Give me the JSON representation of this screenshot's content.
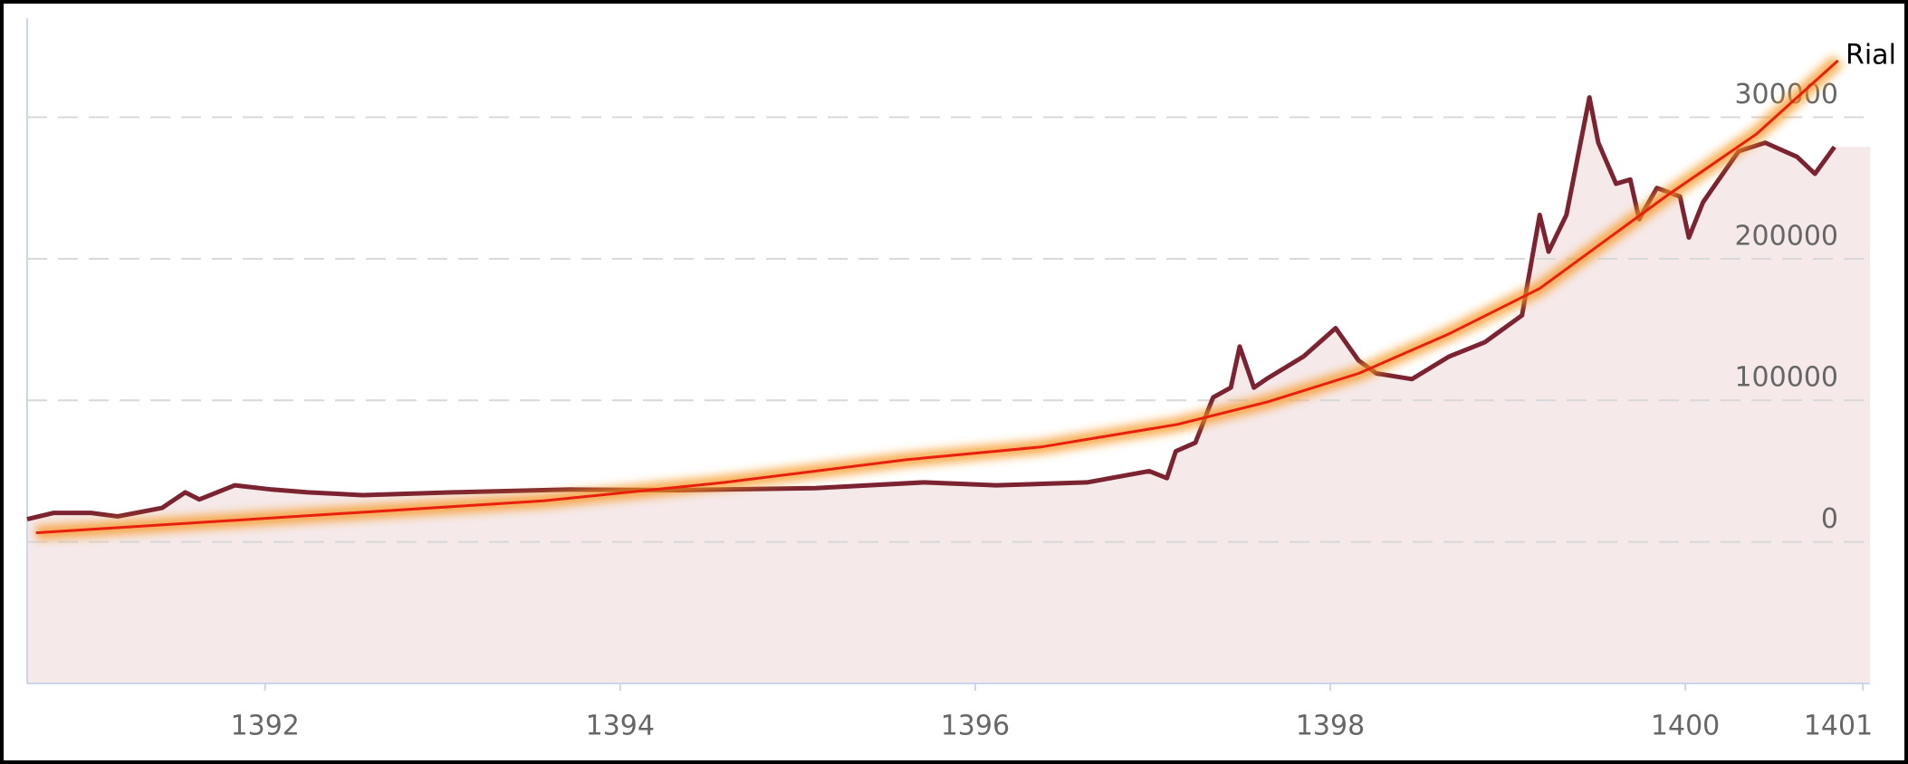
{
  "chart_data": {
    "type": "line",
    "y_unit_label": "Rial",
    "xlim": [
      1390.66,
      1401.04
    ],
    "xticks": [
      1392,
      1394,
      1396,
      1398,
      1400,
      1401
    ],
    "ylim": [
      -100000,
      370000
    ],
    "yticks": [
      0,
      100000,
      200000,
      300000
    ],
    "grid": true,
    "series": [
      {
        "color": "#7b2331",
        "area_color": "#f5e9ea",
        "x": [
          1390.66,
          1390.81,
          1391.02,
          1391.17,
          1391.42,
          1391.55,
          1391.63,
          1391.83,
          1392.04,
          1392.24,
          1392.55,
          1393.06,
          1393.72,
          1394.33,
          1395.1,
          1395.71,
          1396.12,
          1396.63,
          1396.98,
          1397.08,
          1397.13,
          1397.24,
          1397.34,
          1397.44,
          1397.49,
          1397.57,
          1397.64,
          1397.85,
          1398.03,
          1398.16,
          1398.26,
          1398.46,
          1398.67,
          1398.87,
          1399.08,
          1399.18,
          1399.23,
          1399.33,
          1399.41,
          1399.46,
          1399.51,
          1399.61,
          1399.69,
          1399.74,
          1399.84,
          1399.97,
          1400.02,
          1400.1,
          1400.3,
          1400.45,
          1400.63,
          1400.73,
          1400.84
        ],
        "values": [
          16000,
          20500,
          20500,
          18000,
          24000,
          35000,
          30000,
          40000,
          37000,
          35000,
          33000,
          35000,
          37000,
          36500,
          38000,
          42000,
          40000,
          42000,
          50000,
          45000,
          64000,
          70000,
          102000,
          109000,
          138000,
          109000,
          115000,
          131000,
          151000,
          128000,
          119000,
          115000,
          131000,
          141000,
          160000,
          231000,
          205000,
          231000,
          282000,
          314000,
          282000,
          253000,
          256000,
          228000,
          250000,
          244000,
          215000,
          240000,
          276000,
          282000,
          272000,
          260000,
          279000
        ]
      },
      {
        "color": "#e8200e",
        "glow_color": "#f7941d",
        "x": [
          1390.71,
          1393.57,
          1394.59,
          1395.61,
          1396.37,
          1397.14,
          1397.65,
          1398.16,
          1398.67,
          1399.18,
          1399.89,
          1400.4,
          1400.86
        ],
        "values": [
          6400,
          29000,
          42000,
          58000,
          67000,
          83000,
          99000,
          119000,
          147000,
          179000,
          244000,
          288000,
          340000
        ]
      }
    ]
  }
}
